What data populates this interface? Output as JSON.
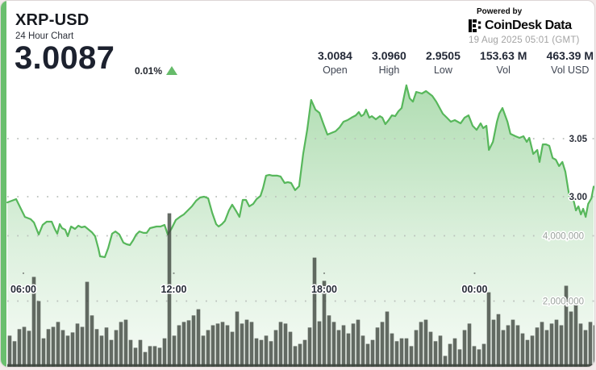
{
  "header": {
    "symbol": "XRP-USD",
    "subtitle": "24 Hour Chart",
    "price": "3.0087",
    "change_percent": "0.01%",
    "change_direction": "up"
  },
  "attribution": {
    "powered_by": "Powered by",
    "brand": "CoinDesk Data",
    "timestamp": "19 Aug 2025 05:01 (GMT)"
  },
  "stats": [
    {
      "value": "3.0084",
      "label": "Open"
    },
    {
      "value": "3.0960",
      "label": "High"
    },
    {
      "value": "2.9505",
      "label": "Low"
    },
    {
      "value": "153.63 M",
      "label": "Vol"
    },
    {
      "value": "463.39 M",
      "label": "Vol USD"
    }
  ],
  "colors": {
    "accent_green": "#6abf6e",
    "line_green": "#57b75b",
    "up_green": "#66bb6a",
    "volume_bar": "#3e463e",
    "grid_dot": "#b9bfba",
    "price_label": "#2a2e39",
    "time_label": "#252b36",
    "volume_label": "#99a29b"
  },
  "chart_data": [
    {
      "type": "area",
      "name": "price",
      "title": "XRP-USD 24 Hour Chart",
      "x_unit": "decimal hours GMT (values over 24 are the next day)",
      "x_tick_labels": [
        "06:00",
        "12:00",
        "18:00",
        "00:00"
      ],
      "x_tick_hours": [
        6,
        12,
        18,
        24
      ],
      "y_axis_side": "right",
      "y_tick_labels": [
        "3.05",
        "3.00"
      ],
      "y_gridlines": [
        3.05,
        3.0
      ],
      "ylim": [
        2.9505,
        3.0995
      ],
      "grid": "dotted",
      "points": [
        [
          5.36,
          2.9951
        ],
        [
          5.71,
          2.9979
        ],
        [
          5.9,
          2.9896
        ],
        [
          6.06,
          2.9826
        ],
        [
          6.29,
          2.9806
        ],
        [
          6.42,
          2.9778
        ],
        [
          6.61,
          2.9674
        ],
        [
          6.77,
          2.9757
        ],
        [
          6.93,
          2.9785
        ],
        [
          7.13,
          2.9785
        ],
        [
          7.25,
          2.9722
        ],
        [
          7.35,
          2.9681
        ],
        [
          7.45,
          2.9764
        ],
        [
          7.54,
          2.9729
        ],
        [
          7.67,
          2.9715
        ],
        [
          7.77,
          2.966
        ],
        [
          7.9,
          2.9743
        ],
        [
          8.06,
          2.9722
        ],
        [
          8.19,
          2.975
        ],
        [
          8.32,
          2.9736
        ],
        [
          8.45,
          2.9743
        ],
        [
          8.57,
          2.9722
        ],
        [
          8.73,
          2.9694
        ],
        [
          8.86,
          2.966
        ],
        [
          8.99,
          2.9556
        ],
        [
          9.06,
          2.9486
        ],
        [
          9.25,
          2.9479
        ],
        [
          9.38,
          2.9556
        ],
        [
          9.54,
          2.9681
        ],
        [
          9.67,
          2.9701
        ],
        [
          9.83,
          2.9674
        ],
        [
          9.99,
          2.9604
        ],
        [
          10.12,
          2.959
        ],
        [
          10.25,
          2.9583
        ],
        [
          10.38,
          2.9625
        ],
        [
          10.5,
          2.9674
        ],
        [
          10.63,
          2.9701
        ],
        [
          10.79,
          2.9688
        ],
        [
          10.92,
          2.9688
        ],
        [
          11.05,
          2.9729
        ],
        [
          11.18,
          2.9736
        ],
        [
          11.31,
          2.9743
        ],
        [
          11.47,
          2.9743
        ],
        [
          11.63,
          2.9757
        ],
        [
          11.76,
          2.9674
        ],
        [
          11.92,
          2.9729
        ],
        [
          12.08,
          2.9799
        ],
        [
          12.24,
          2.9826
        ],
        [
          12.4,
          2.9847
        ],
        [
          12.56,
          2.9882
        ],
        [
          12.72,
          2.9917
        ],
        [
          12.89,
          2.9965
        ],
        [
          13.05,
          2.9993
        ],
        [
          13.21,
          3.0
        ],
        [
          13.37,
          2.9986
        ],
        [
          13.53,
          2.9861
        ],
        [
          13.69,
          2.9764
        ],
        [
          13.79,
          2.9743
        ],
        [
          13.92,
          2.9764
        ],
        [
          14.04,
          2.9792
        ],
        [
          14.2,
          2.9882
        ],
        [
          14.33,
          2.9931
        ],
        [
          14.49,
          2.9875
        ],
        [
          14.62,
          2.9826
        ],
        [
          14.75,
          2.9972
        ],
        [
          14.88,
          2.9972
        ],
        [
          15.01,
          2.9917
        ],
        [
          15.17,
          2.9938
        ],
        [
          15.3,
          2.9979
        ],
        [
          15.46,
          3.0007
        ],
        [
          15.56,
          3.0076
        ],
        [
          15.68,
          3.0181
        ],
        [
          15.81,
          3.0188
        ],
        [
          15.94,
          3.0181
        ],
        [
          16.13,
          3.0181
        ],
        [
          16.26,
          3.0174
        ],
        [
          16.42,
          3.0118
        ],
        [
          16.55,
          3.0125
        ],
        [
          16.68,
          3.0118
        ],
        [
          16.84,
          3.0056
        ],
        [
          17.0,
          3.009
        ],
        [
          17.16,
          3.0368
        ],
        [
          17.32,
          3.0576
        ],
        [
          17.48,
          3.0833
        ],
        [
          17.65,
          3.075
        ],
        [
          17.81,
          3.0722
        ],
        [
          17.97,
          3.0625
        ],
        [
          18.13,
          3.0535
        ],
        [
          18.29,
          3.0549
        ],
        [
          18.45,
          3.0563
        ],
        [
          18.61,
          3.0597
        ],
        [
          18.77,
          3.0646
        ],
        [
          18.93,
          3.066
        ],
        [
          19.09,
          3.0681
        ],
        [
          19.26,
          3.0701
        ],
        [
          19.38,
          3.0729
        ],
        [
          19.48,
          3.0694
        ],
        [
          19.58,
          3.0708
        ],
        [
          19.67,
          3.075
        ],
        [
          19.8,
          3.0681
        ],
        [
          19.9,
          3.0694
        ],
        [
          20.06,
          3.0667
        ],
        [
          20.22,
          3.0694
        ],
        [
          20.32,
          3.0681
        ],
        [
          20.44,
          3.0625
        ],
        [
          20.57,
          3.066
        ],
        [
          20.7,
          3.0701
        ],
        [
          20.83,
          3.0694
        ],
        [
          20.96,
          3.0736
        ],
        [
          21.09,
          3.0764
        ],
        [
          21.28,
          3.096
        ],
        [
          21.41,
          3.0847
        ],
        [
          21.54,
          3.0819
        ],
        [
          21.67,
          3.0903
        ],
        [
          21.9,
          3.0889
        ],
        [
          22.06,
          3.091
        ],
        [
          22.31,
          3.0868
        ],
        [
          22.47,
          3.0819
        ],
        [
          22.73,
          3.0715
        ],
        [
          22.89,
          3.0681
        ],
        [
          23.05,
          3.0646
        ],
        [
          23.21,
          3.066
        ],
        [
          23.44,
          3.0632
        ],
        [
          23.6,
          3.0681
        ],
        [
          23.76,
          3.0701
        ],
        [
          23.92,
          3.0611
        ],
        [
          24.08,
          3.0576
        ],
        [
          24.24,
          3.0632
        ],
        [
          24.34,
          3.059
        ],
        [
          24.47,
          3.0611
        ],
        [
          24.57,
          3.0403
        ],
        [
          24.73,
          3.0472
        ],
        [
          24.89,
          3.0646
        ],
        [
          24.98,
          3.0715
        ],
        [
          25.11,
          3.0764
        ],
        [
          25.31,
          3.0646
        ],
        [
          25.43,
          3.0542
        ],
        [
          25.63,
          3.0521
        ],
        [
          25.79,
          3.0507
        ],
        [
          25.95,
          3.0521
        ],
        [
          26.08,
          3.0472
        ],
        [
          26.18,
          3.0507
        ],
        [
          26.34,
          3.0368
        ],
        [
          26.5,
          3.0403
        ],
        [
          26.59,
          3.0299
        ],
        [
          26.72,
          3.0451
        ],
        [
          26.85,
          3.0451
        ],
        [
          26.98,
          3.0438
        ],
        [
          27.11,
          3.0333
        ],
        [
          27.24,
          3.0319
        ],
        [
          27.37,
          3.0264
        ],
        [
          27.5,
          3.0299
        ],
        [
          27.62,
          3.0215
        ],
        [
          27.79,
          2.9986
        ],
        [
          27.95,
          2.9965
        ],
        [
          28.04,
          2.9882
        ],
        [
          28.14,
          2.9917
        ],
        [
          28.24,
          2.9847
        ],
        [
          28.33,
          2.9896
        ],
        [
          28.43,
          2.9826
        ],
        [
          28.53,
          2.9938
        ],
        [
          28.66,
          2.9986
        ],
        [
          28.75,
          3.0087
        ]
      ]
    },
    {
      "type": "bar",
      "name": "volume",
      "y_axis_side": "right",
      "y_tick_labels": [
        "4,000,000",
        "2,000,000"
      ],
      "y_gridlines": [
        4000000,
        2000000
      ],
      "ylim": [
        0,
        8700000
      ],
      "values_millions": [
        0.94,
        0.77,
        1.14,
        1.21,
        1.09,
        2.74,
        2.0,
        0.86,
        1.14,
        1.21,
        1.36,
        1.11,
        0.94,
        1.04,
        1.31,
        1.21,
        2.59,
        1.56,
        1.14,
        0.94,
        1.19,
        0.81,
        1.11,
        1.36,
        1.43,
        0.81,
        0.57,
        0.81,
        0.44,
        0.62,
        0.62,
        0.57,
        0.86,
        4.69,
        0.94,
        1.26,
        1.36,
        1.41,
        1.56,
        1.75,
        0.94,
        1.11,
        1.26,
        1.31,
        1.36,
        1.26,
        1.06,
        1.68,
        1.31,
        1.43,
        1.36,
        0.86,
        0.81,
        0.94,
        0.77,
        1.11,
        1.36,
        1.31,
        1.06,
        0.62,
        0.69,
        0.81,
        1.19,
        3.33,
        1.38,
        2.62,
        1.56,
        1.36,
        1.11,
        1.26,
        1.01,
        1.31,
        1.43,
        0.94,
        0.69,
        0.81,
        1.19,
        1.36,
        1.68,
        1.01,
        0.77,
        0.86,
        0.86,
        0.62,
        1.11,
        1.36,
        1.43,
        1.06,
        0.77,
        0.94,
        0.32,
        0.69,
        0.86,
        0.52,
        1.11,
        1.31,
        0.62,
        0.52,
        0.69,
        2.27,
        1.43,
        1.6,
        1.11,
        1.26,
        1.43,
        1.26,
        1.01,
        0.81,
        0.94,
        1.19,
        1.36,
        1.11,
        1.31,
        1.43,
        1.26,
        2.47,
        1.68,
        1.88,
        1.31,
        1.11,
        1.36,
        1.26
      ]
    }
  ]
}
